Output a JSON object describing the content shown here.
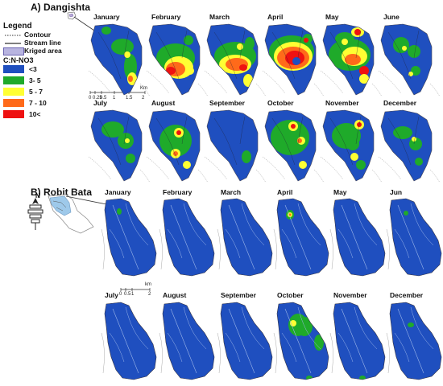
{
  "panel_a": {
    "title": "A) Dangishta",
    "legend": {
      "title": "Legend",
      "contour_label": "Contour",
      "stream_label": "Stream line",
      "kriged_label": "Kriged area",
      "class_title": "C:N-NO3",
      "classes": [
        {
          "label": "<3",
          "color": "#1f4fbf"
        },
        {
          "label": "3- 5",
          "color": "#1faa2a"
        },
        {
          "label": "5 - 7",
          "color": "#ffff33"
        },
        {
          "label": "7 - 10",
          "color": "#ff6a1a"
        },
        {
          "label": "10<",
          "color": "#ee1111"
        }
      ]
    },
    "scale": {
      "ticks": [
        "0",
        "0.25",
        "0.5",
        "1",
        "1.5",
        "2"
      ],
      "unit": "Km"
    },
    "months": [
      "January",
      "February",
      "March",
      "April",
      "May",
      "June",
      "July",
      "August",
      "September",
      "October",
      "November",
      "December"
    ]
  },
  "panel_b": {
    "title": "B) Robit Bata",
    "north": "N",
    "scale": {
      "ticks": [
        "0",
        "0.5",
        "1",
        "2"
      ],
      "unit": "km"
    },
    "months": [
      "January",
      "February",
      "March",
      "April",
      "May",
      "Jun",
      "July",
      "August",
      "September",
      "October",
      "November",
      "December"
    ]
  }
}
